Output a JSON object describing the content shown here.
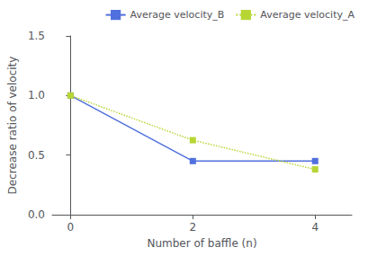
{
  "chart_data": {
    "type": "line",
    "x": [
      0,
      2,
      4
    ],
    "series": [
      {
        "name": "Average velocity_B",
        "values": [
          1.0,
          0.45,
          0.45
        ],
        "marker": "square",
        "line_style": "solid"
      },
      {
        "name": "Average velocity_A",
        "values": [
          1.0,
          0.625,
          0.38
        ],
        "marker": "square",
        "line_style": "dotted"
      }
    ],
    "xlabel": "Number of baffle (n)",
    "ylabel": "Decrease ratio of velocity",
    "xlim": [
      -0.3,
      4.6
    ],
    "xticks": [
      0,
      2,
      4
    ],
    "ylim": [
      0.0,
      1.5
    ],
    "yticks": [
      {
        "value": 0.0,
        "label": "0.0"
      },
      {
        "value": 0.5,
        "label": "0.5"
      },
      {
        "value": 1.0,
        "label": "1.0"
      },
      {
        "value": 1.5,
        "label": "1.5"
      }
    ],
    "grid": false,
    "legend": "upper right"
  }
}
